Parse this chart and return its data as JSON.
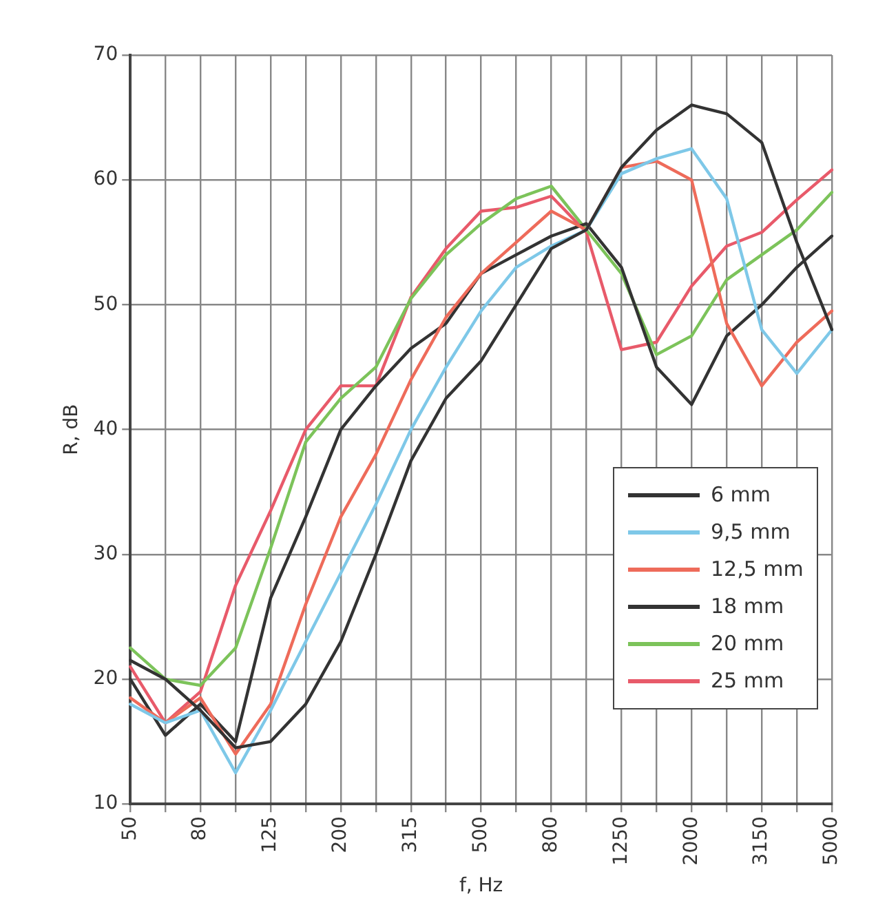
{
  "chart_data": {
    "type": "line",
    "xlabel": "f, Hz",
    "ylabel": "R, dB",
    "categories": [
      "50",
      null,
      "80",
      null,
      "125",
      null,
      "200",
      null,
      "315",
      null,
      "500",
      null,
      "800",
      null,
      "1250",
      null,
      "2000",
      null,
      "3150",
      null,
      "5000"
    ],
    "ylim": [
      10,
      70
    ],
    "yticks": [
      10,
      20,
      30,
      40,
      50,
      60,
      70
    ],
    "grid": true,
    "legend": "right",
    "marker": "none",
    "line_style": "solid",
    "series": [
      {
        "name": "6 mm",
        "color": "#333333",
        "values": [
          21.5,
          20,
          17.5,
          14.5,
          15,
          18,
          23,
          30,
          37.5,
          42.5,
          45.5,
          50,
          54.5,
          56,
          61,
          64,
          66,
          65.3,
          63,
          55,
          48
        ]
      },
      {
        "name": "9,5 mm",
        "color": "#7ec8e8",
        "values": [
          18,
          16.5,
          17.5,
          12.5,
          17.5,
          23,
          28.5,
          34,
          40,
          45,
          49.5,
          53,
          54.7,
          56,
          60.5,
          61.7,
          62.5,
          58.5,
          48,
          44.5,
          48
        ]
      },
      {
        "name": "12,5 mm",
        "color": "#ee6b5a",
        "values": [
          18.5,
          16.5,
          18.5,
          14,
          18,
          26,
          33,
          38,
          44,
          49,
          52.5,
          55,
          57.5,
          56,
          61,
          61.5,
          60,
          48.5,
          43.5,
          47,
          49.5
        ]
      },
      {
        "name": "18 mm",
        "color": "#333333",
        "values": [
          20,
          15.5,
          18,
          15,
          26.5,
          33,
          40,
          43.5,
          46.5,
          48.5,
          52.5,
          54,
          55.5,
          56.5,
          53,
          45,
          42,
          47.5,
          50,
          53,
          55.5
        ]
      },
      {
        "name": "20 mm",
        "color": "#7cc35a",
        "values": [
          22.5,
          20,
          19.5,
          22.5,
          30.5,
          39,
          42.5,
          45,
          50.5,
          54,
          56.5,
          58.5,
          59.5,
          56,
          52.5,
          46,
          47.5,
          52,
          54,
          56,
          59
        ]
      },
      {
        "name": "25 mm",
        "color": "#e85a6a",
        "values": [
          21,
          16.5,
          19,
          27.5,
          33.5,
          40,
          43.5,
          43.5,
          50.6,
          54.5,
          57.5,
          57.8,
          58.7,
          55.8,
          46.4,
          47,
          51.5,
          54.7,
          55.8,
          58.4,
          60.8
        ]
      }
    ]
  }
}
